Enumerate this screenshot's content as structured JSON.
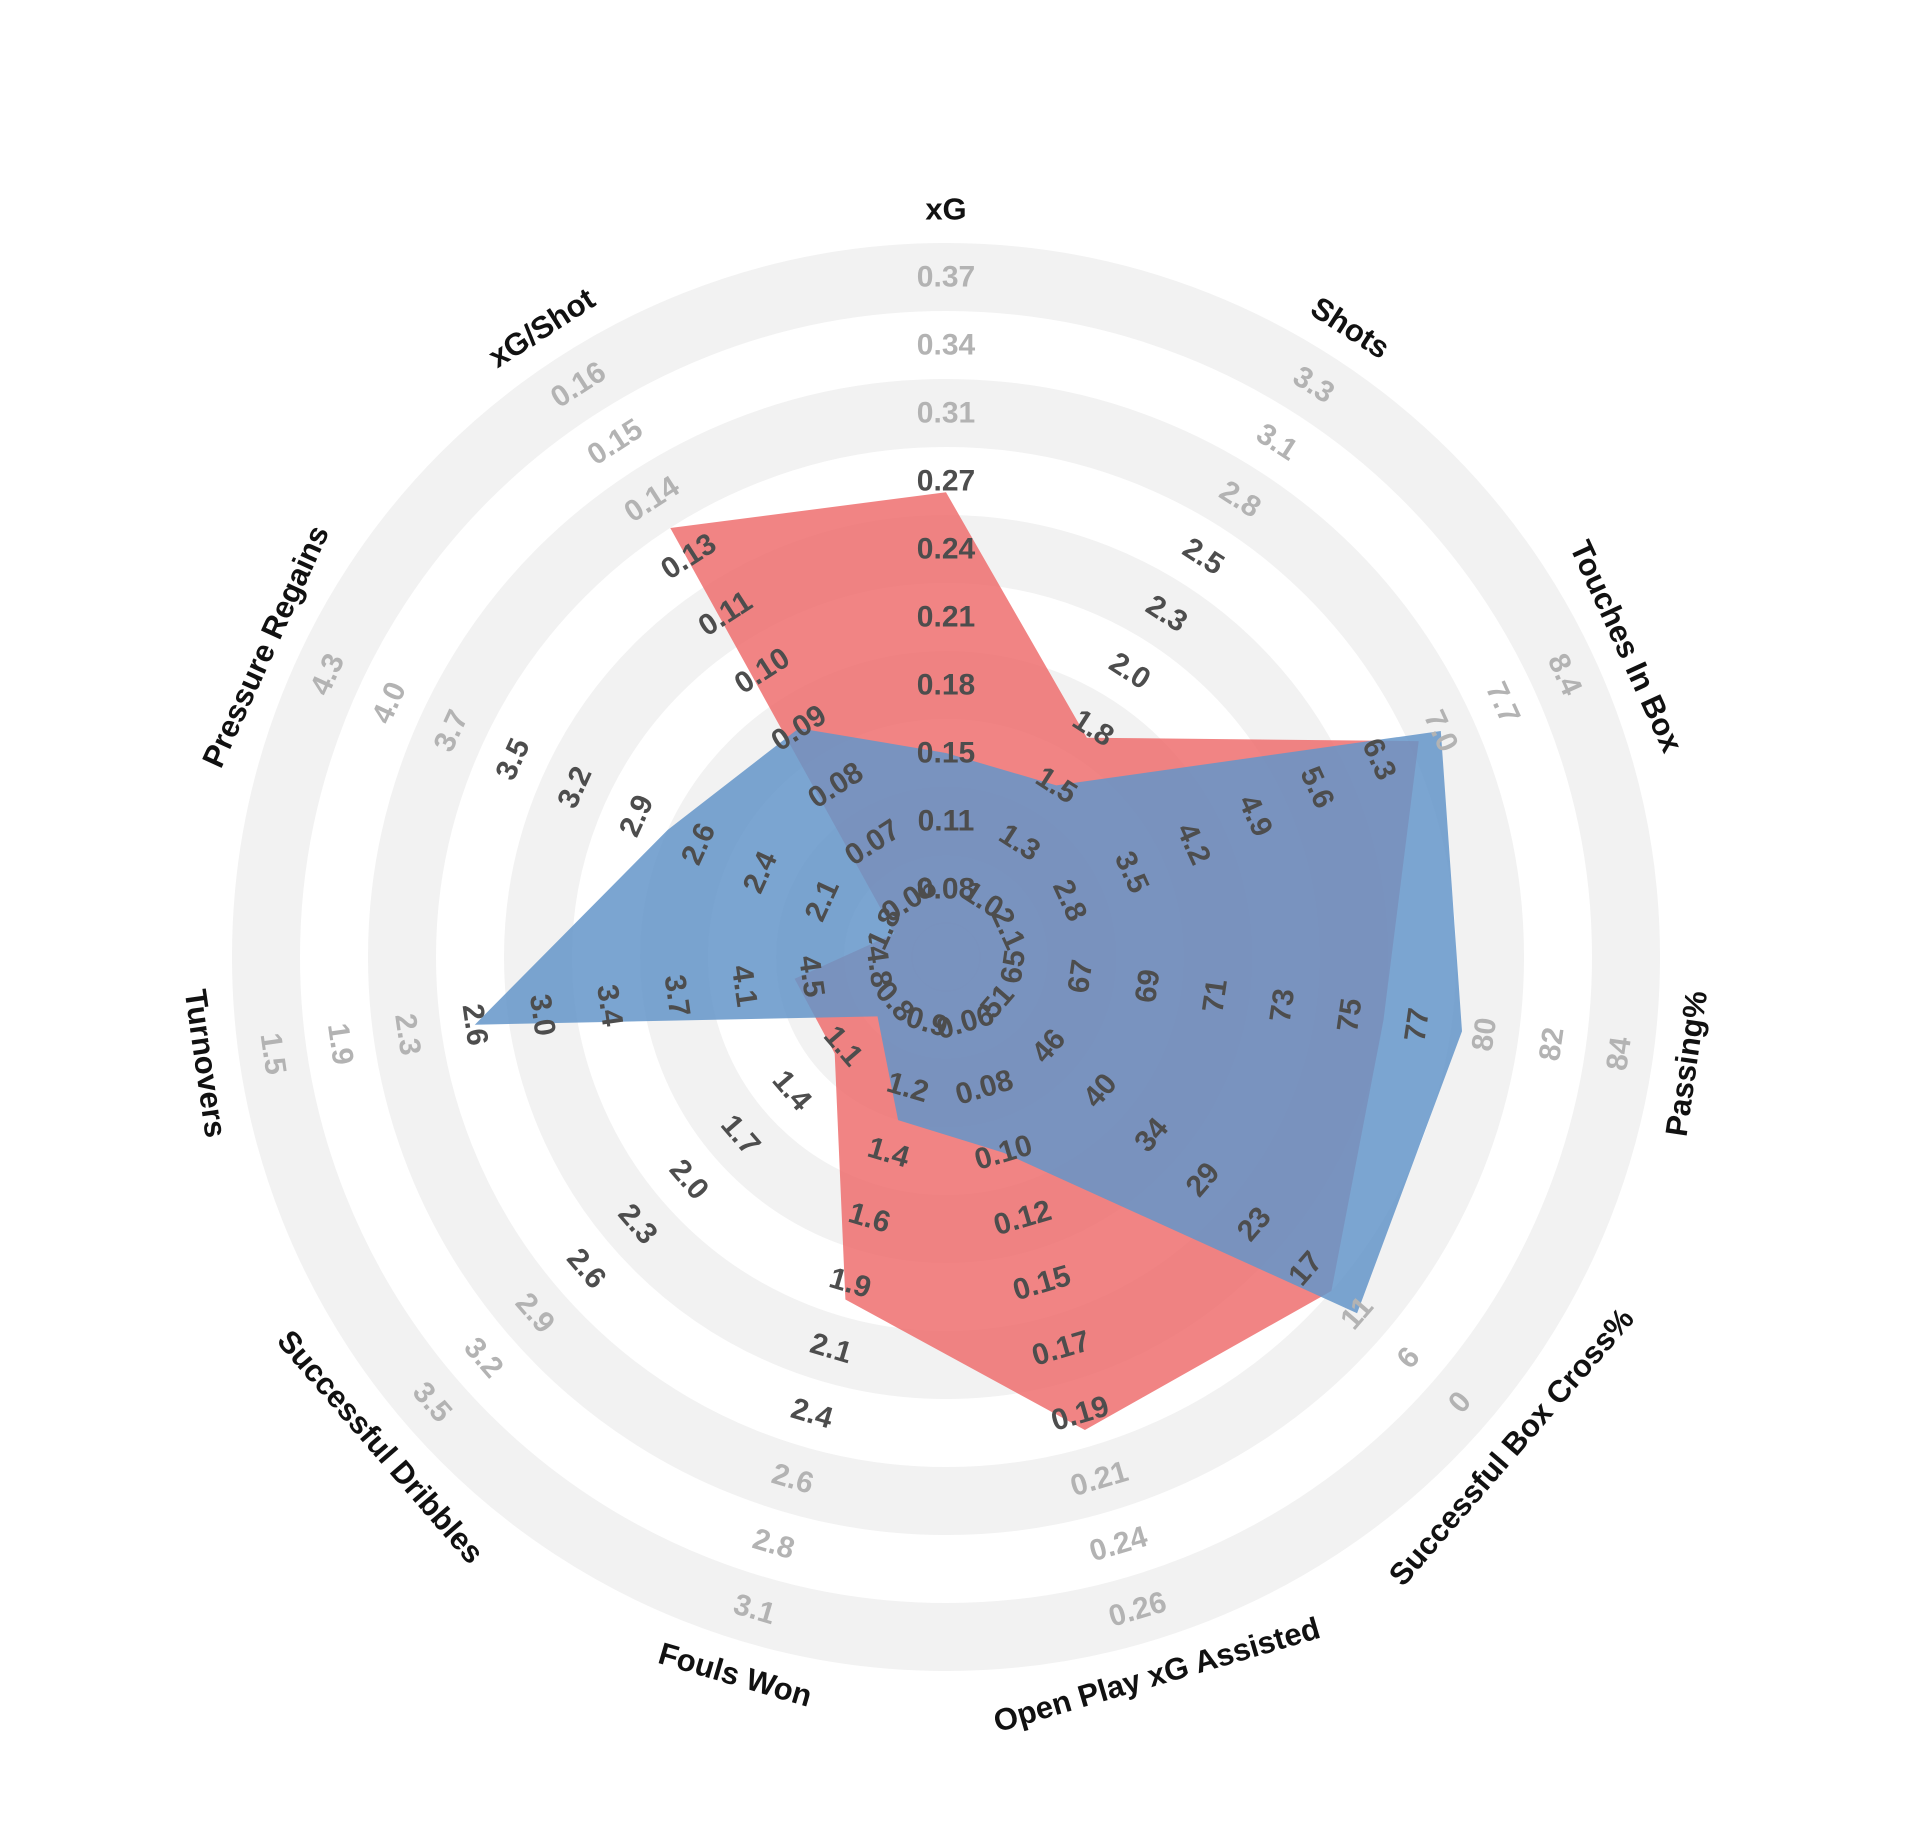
{
  "chart_data": {
    "type": "radar",
    "title": "",
    "metrics": [
      "xG",
      "Shots",
      "Touches In Box",
      "Passing%",
      "Successful Box Cross%",
      "Open Play xG Assisted",
      "Fouls Won",
      "Successful Dribbles",
      "Turnovers",
      "Pressure Regains",
      "xG/Shot"
    ],
    "ring_labels": [
      [
        "0.08",
        "0.11",
        "0.15",
        "0.18",
        "0.21",
        "0.24",
        "0.27",
        "0.31",
        "0.34",
        "0.37"
      ],
      [
        "1.0",
        "1.3",
        "1.5",
        "1.8",
        "2.0",
        "2.3",
        "2.5",
        "2.8",
        "3.1",
        "3.3"
      ],
      [
        "2.1",
        "2.8",
        "3.5",
        "4.2",
        "4.9",
        "5.6",
        "6.3",
        "7.0",
        "7.7",
        "8.4"
      ],
      [
        "65",
        "67",
        "69",
        "71",
        "73",
        "75",
        "77",
        "80",
        "82",
        "84"
      ],
      [
        "51",
        "46",
        "40",
        "34",
        "29",
        "23",
        "17",
        "11",
        "6",
        "0"
      ],
      [
        "0.06",
        "0.08",
        "0.10",
        "0.12",
        "0.15",
        "0.17",
        "0.19",
        "0.21",
        "0.24",
        "0.26"
      ],
      [
        "0.9",
        "1.2",
        "1.4",
        "1.6",
        "1.9",
        "2.1",
        "2.4",
        "2.6",
        "2.8",
        "3.1"
      ],
      [
        "0.8",
        "1.1",
        "1.4",
        "1.7",
        "2.0",
        "2.3",
        "2.6",
        "2.9",
        "3.2",
        "3.5"
      ],
      [
        "4.8",
        "4.5",
        "4.1",
        "3.7",
        "3.4",
        "3.0",
        "2.6",
        "2.3",
        "1.9",
        "1.5"
      ],
      [
        "1.8",
        "2.1",
        "2.4",
        "2.6",
        "2.9",
        "3.2",
        "3.5",
        "3.7",
        "4.0",
        "4.3"
      ],
      [
        "0.06",
        "0.07",
        "0.08",
        "0.09",
        "0.10",
        "0.11",
        "0.13",
        "0.14",
        "0.15",
        "0.16"
      ]
    ],
    "series": [
      {
        "color": "#ee6f6f",
        "values": [
          0.265,
          1.75,
          6.75,
          76,
          14,
          0.195,
          1.95,
          1.15,
          4.4,
          1.75,
          0.135
        ]
      },
      {
        "color": "#6495c9",
        "values": [
          0.15,
          1.5,
          7.0,
          79,
          11,
          0.1,
          1.3,
          0.9,
          2.6,
          2.75,
          0.09
        ]
      }
    ],
    "legend": "none",
    "grid": true
  }
}
